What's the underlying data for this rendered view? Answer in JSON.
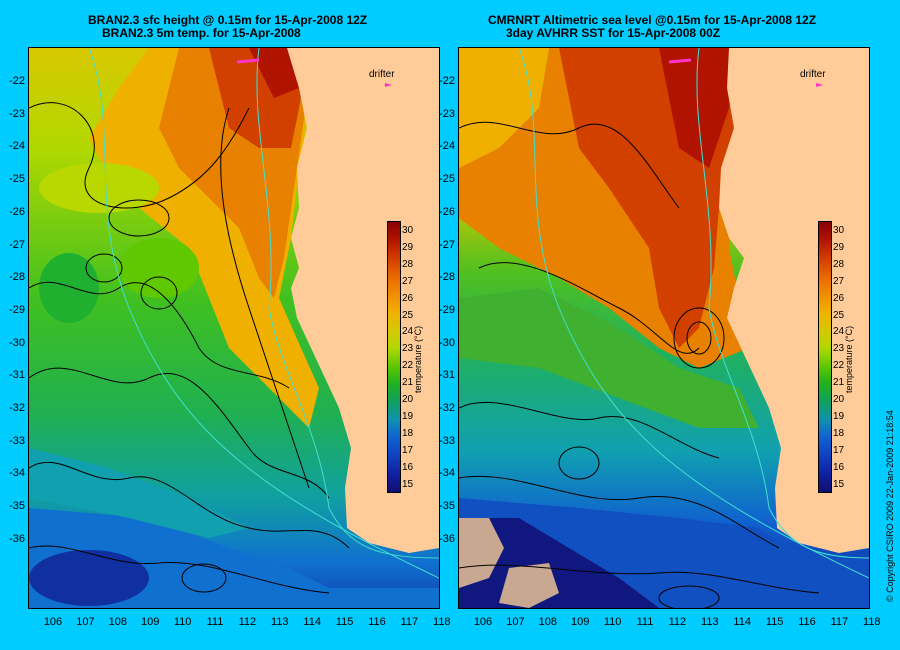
{
  "left_panel": {
    "title_line1": "BRAN2.3 sfc height @ 0.15m for 15-Apr-2008 12Z",
    "title_line2": "BRAN2.3 5m temp. for 15-Apr-2008",
    "drifter_label": "drifter"
  },
  "right_panel": {
    "title_line1": "CMRNRT Altimetric sea level  @0.15m  for 15-Apr-2008 12Z",
    "title_line2": "3day AVHRR SST for 15-Apr-2008 00Z",
    "drifter_label": "drifter"
  },
  "axes": {
    "lat_labels": [
      "-22",
      "-23",
      "-24",
      "-25",
      "-26",
      "-27",
      "-28",
      "-29",
      "-30",
      "-31",
      "-32",
      "-33",
      "-34",
      "-35",
      "-36"
    ],
    "lon_labels": [
      "106",
      "107",
      "108",
      "109",
      "110",
      "111",
      "112",
      "113",
      "114",
      "115",
      "116",
      "117",
      "118"
    ]
  },
  "colorbar": {
    "title": "temperature (°C)",
    "ticks": [
      "30",
      "29",
      "28",
      "27",
      "26",
      "25",
      "24",
      "23",
      "22",
      "21",
      "20",
      "19",
      "18",
      "17",
      "16",
      "15"
    ],
    "colors": [
      "#8a0000",
      "#b01400",
      "#d23c00",
      "#e86800",
      "#f08c00",
      "#f0b000",
      "#d8c800",
      "#b0d800",
      "#60c800",
      "#20b020",
      "#10a060",
      "#1090b0",
      "#1060d0",
      "#1040c0",
      "#1020a0",
      "#101070"
    ]
  },
  "colors": {
    "background": "#00ccff",
    "land": "#ffcc99",
    "drifter": "#ff33cc",
    "bathymetry": "#40e0d0"
  },
  "copyright": "© Copyright CSIRO 2009   22-Jan-2009 21:18:54"
}
